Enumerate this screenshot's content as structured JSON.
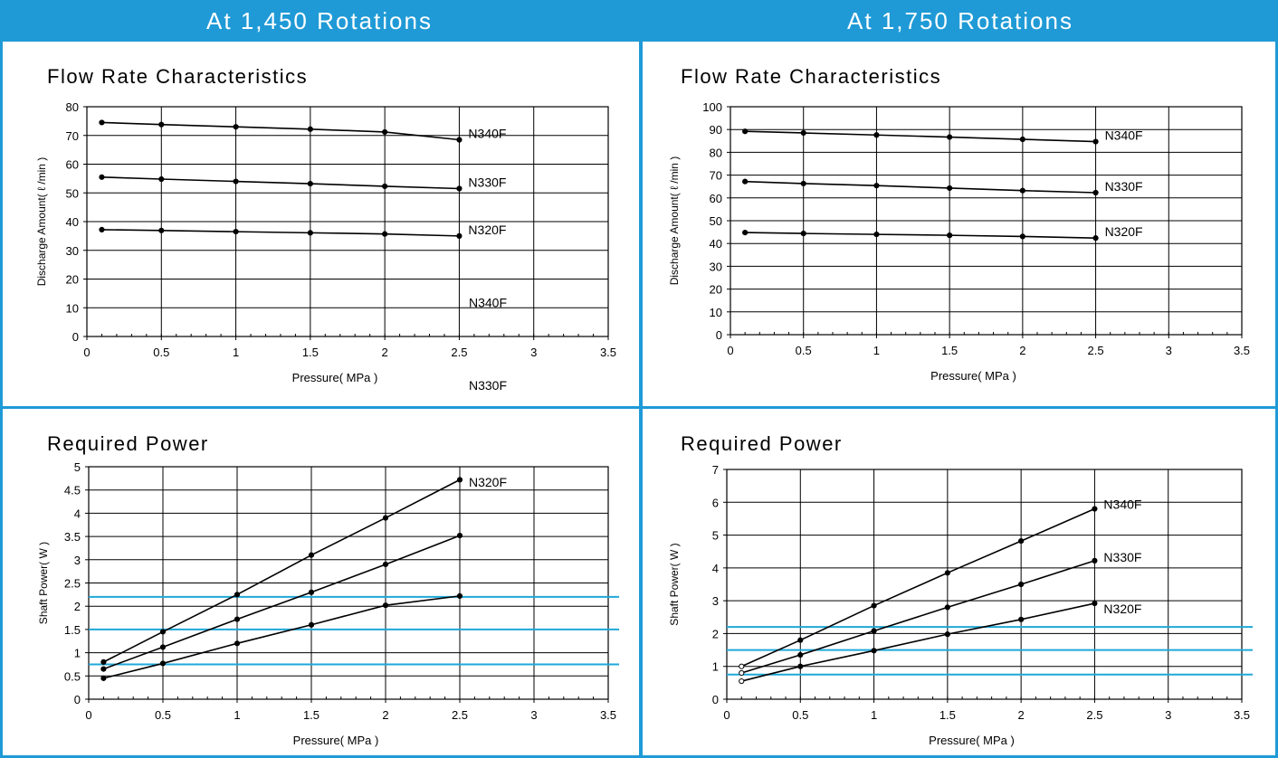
{
  "header": {
    "left_title": "At 1,450 Rotations",
    "right_title": "At 1,750 Rotations"
  },
  "colors": {
    "accent": "#1f9ad6",
    "reference_line": "#1fa8d8"
  },
  "chart_data": [
    {
      "id": "flow-1450",
      "type": "line",
      "title": "Flow Rate Characteristics",
      "xlabel": "Pressure( MPa )",
      "ylabel": "Discharge Amount( ℓ /min )",
      "xlim": [
        0,
        3.5
      ],
      "ylim": [
        0,
        80
      ],
      "xticks": [
        0,
        0.5,
        1,
        1.5,
        2,
        2.5,
        3,
        3.5
      ],
      "xtick_labels": [
        "0",
        "0.5",
        "1",
        "1.5",
        "2",
        "2.5",
        "3",
        "3.5"
      ],
      "yticks": [
        0,
        10,
        20,
        30,
        40,
        50,
        60,
        70,
        80
      ],
      "ytick_labels": [
        "0",
        "10",
        "20",
        "30",
        "40",
        "50",
        "60",
        "70",
        "80"
      ],
      "grid": true,
      "x": [
        0.1,
        0.5,
        1,
        1.5,
        2,
        2.5
      ],
      "series": [
        {
          "name": "N340F",
          "values": [
            74.5,
            73.8,
            73.0,
            72.2,
            71.2,
            68.5
          ]
        },
        {
          "name": "N330F",
          "values": [
            55.5,
            54.8,
            54.0,
            53.2,
            52.3,
            51.5
          ]
        },
        {
          "name": "N320F",
          "values": [
            37.2,
            36.9,
            36.5,
            36.1,
            35.7,
            35.0
          ]
        }
      ],
      "reference_lines": []
    },
    {
      "id": "flow-1750",
      "type": "line",
      "title": "Flow Rate Characteristics",
      "xlabel": "Pressure( MPa )",
      "ylabel": "Discharge Amount( ℓ /min )",
      "xlim": [
        0,
        3.5
      ],
      "ylim": [
        0,
        100
      ],
      "xticks": [
        0,
        0.5,
        1,
        1.5,
        2,
        2.5,
        3,
        3.5
      ],
      "xtick_labels": [
        "0",
        "0.5",
        "1",
        "1.5",
        "2",
        "2.5",
        "3",
        "3.5"
      ],
      "yticks": [
        0,
        10,
        20,
        30,
        40,
        50,
        60,
        70,
        80,
        90,
        100
      ],
      "ytick_labels": [
        "0",
        "10",
        "20",
        "30",
        "40",
        "50",
        "60",
        "70",
        "80",
        "90",
        "100"
      ],
      "grid": true,
      "x": [
        0.1,
        0.5,
        1,
        1.5,
        2,
        2.5
      ],
      "series": [
        {
          "name": "N340F",
          "values": [
            89.2,
            88.5,
            87.6,
            86.7,
            85.7,
            84.7
          ]
        },
        {
          "name": "N330F",
          "values": [
            67.2,
            66.3,
            65.4,
            64.3,
            63.2,
            62.3
          ]
        },
        {
          "name": "N320F",
          "values": [
            44.8,
            44.4,
            44.0,
            43.6,
            43.1,
            42.4
          ]
        }
      ],
      "reference_lines": []
    },
    {
      "id": "power-1450",
      "type": "line",
      "title": "Required Power",
      "xlabel": "Pressure( MPa )",
      "ylabel": "Shaft Power( W )",
      "xlim": [
        0,
        3.5
      ],
      "ylim": [
        0,
        5
      ],
      "xticks": [
        0,
        0.5,
        1,
        1.5,
        2,
        2.5,
        3,
        3.5
      ],
      "xtick_labels": [
        "0",
        "0.5",
        "1",
        "1.5",
        "2",
        "2.5",
        "3",
        "3.5"
      ],
      "yticks": [
        0,
        0.5,
        1,
        1.5,
        2,
        2.5,
        3,
        3.5,
        4,
        4.5,
        5
      ],
      "ytick_labels": [
        "0",
        "0.5",
        "1",
        "1.5",
        "2",
        "2.5",
        "3",
        "3.5",
        "4",
        "4.5",
        "5"
      ],
      "grid": true,
      "x": [
        0.1,
        0.5,
        1,
        1.5,
        2,
        2.5
      ],
      "series": [
        {
          "name": "N340F",
          "values": [
            0.8,
            1.45,
            2.25,
            3.1,
            3.9,
            4.72
          ]
        },
        {
          "name": "N330F",
          "values": [
            0.65,
            1.12,
            1.72,
            2.3,
            2.9,
            3.52
          ]
        },
        {
          "name": "N320F",
          "values": [
            0.45,
            0.77,
            1.2,
            1.6,
            2.02,
            2.22
          ]
        }
      ],
      "reference_lines": [
        2.2,
        1.5,
        0.75
      ]
    },
    {
      "id": "power-1750",
      "type": "line",
      "title": "Required Power",
      "xlabel": "Pressure( MPa )",
      "ylabel": "Shaft Power( W )",
      "xlim": [
        0,
        3.5
      ],
      "ylim": [
        0,
        7
      ],
      "xticks": [
        0,
        0.5,
        1,
        1.5,
        2,
        2.5,
        3,
        3.5
      ],
      "xtick_labels": [
        "0",
        "0.5",
        "1",
        "1.5",
        "2",
        "2.5",
        "3",
        "3.5"
      ],
      "yticks": [
        0,
        1,
        2,
        3,
        4,
        5,
        6,
        7
      ],
      "ytick_labels": [
        "0",
        "1",
        "2",
        "3",
        "4",
        "5",
        "6",
        "7"
      ],
      "grid": true,
      "x": [
        0.1,
        0.5,
        1,
        1.5,
        2,
        2.5
      ],
      "series": [
        {
          "name": "N340F",
          "values": [
            1.0,
            1.8,
            2.85,
            3.85,
            4.82,
            5.8
          ]
        },
        {
          "name": "N330F",
          "values": [
            0.8,
            1.35,
            2.08,
            2.8,
            3.5,
            4.22
          ]
        },
        {
          "name": "N320F",
          "values": [
            0.55,
            1.0,
            1.48,
            1.98,
            2.43,
            2.92
          ]
        }
      ],
      "reference_lines": [
        2.2,
        1.5,
        0.75
      ]
    }
  ]
}
